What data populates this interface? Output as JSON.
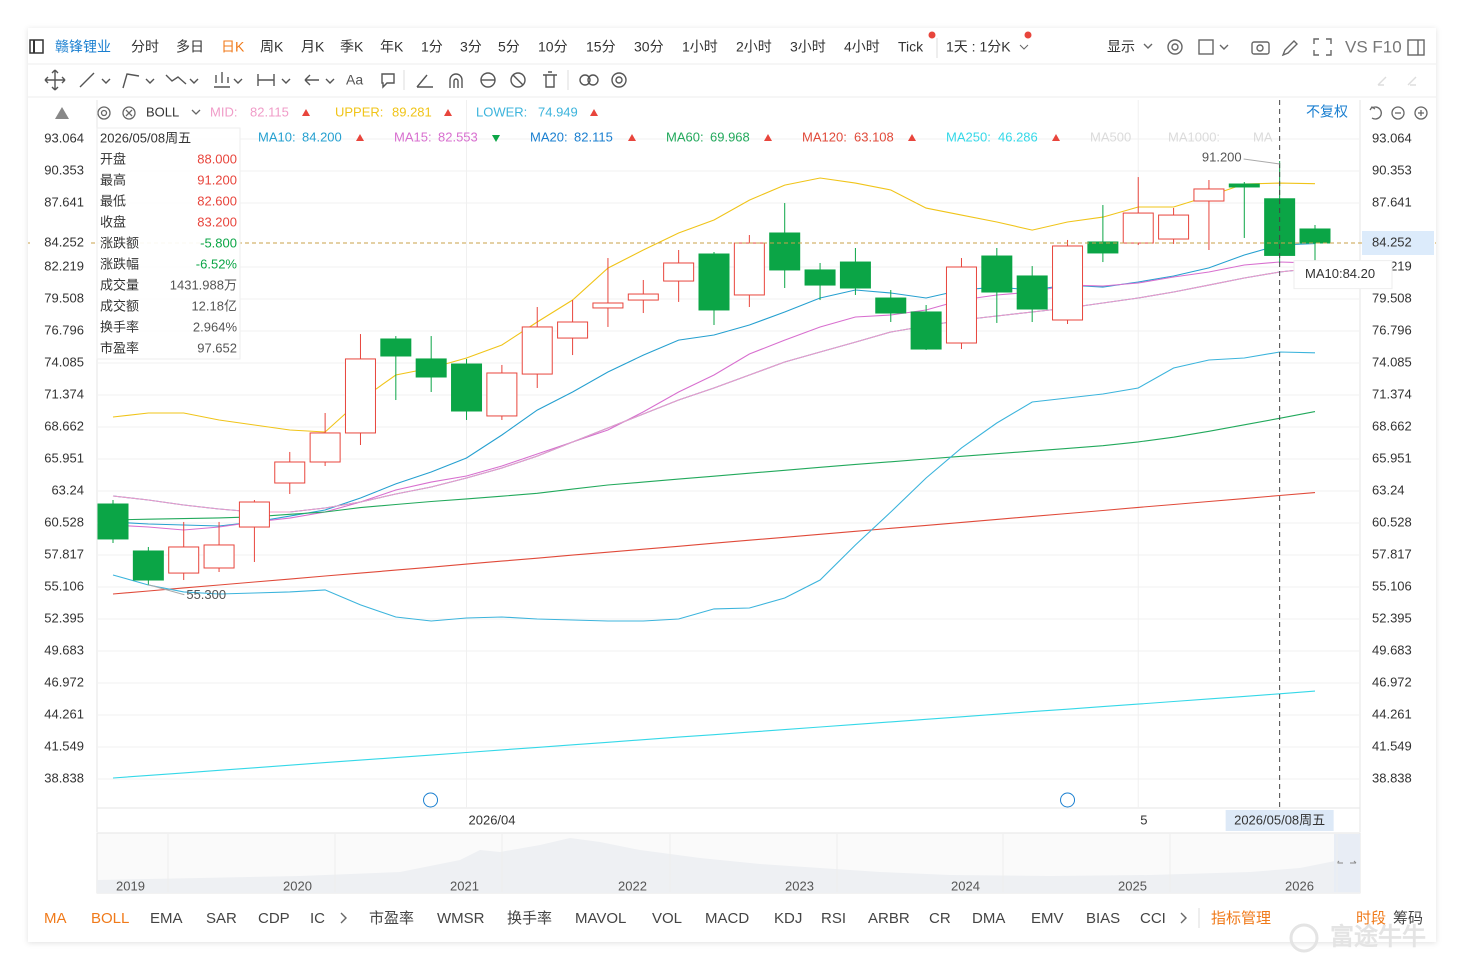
{
  "toolbar": {
    "stock": "赣锋锂业",
    "periods": [
      "分时",
      "多日",
      "日K",
      "周K",
      "月K",
      "季K",
      "年K",
      "1分",
      "3分",
      "5分",
      "10分",
      "15分",
      "30分",
      "1小时",
      "2小时",
      "3小时",
      "4小时",
      "Tick"
    ],
    "active_period": "日K",
    "period_setting": "1天 : 1分K",
    "display": "显示",
    "compare": "VS F10",
    "font_tool": "Aa"
  },
  "indicator_bar": {
    "indicator": "BOLL",
    "adjust": "不复权"
  },
  "info_panel": {
    "date": "2026/05/08周五",
    "rows": [
      {
        "label": "开盘",
        "value": "88.000",
        "tone": "up"
      },
      {
        "label": "最高",
        "value": "91.200",
        "tone": "up"
      },
      {
        "label": "最低",
        "value": "82.600",
        "tone": "up"
      },
      {
        "label": "收盘",
        "value": "83.200",
        "tone": "up"
      },
      {
        "label": "涨跌额",
        "value": "-5.800",
        "tone": "down"
      },
      {
        "label": "涨跌幅",
        "value": "-6.52%",
        "tone": "down"
      },
      {
        "label": "成交量",
        "value": "1431.988万"
      },
      {
        "label": "成交额",
        "value": "12.18亿"
      },
      {
        "label": "换手率",
        "value": "2.964%"
      },
      {
        "label": "市盈率",
        "value": "97.652"
      }
    ]
  },
  "chart_data": {
    "type": "candlestick",
    "categories": [
      null,
      null,
      null,
      null,
      null,
      null,
      null,
      null,
      null,
      null,
      "2026/04",
      null,
      null,
      null,
      null,
      null,
      null,
      null,
      null,
      null,
      null,
      null,
      null,
      null,
      null,
      null,
      null,
      null,
      null,
      "5",
      null,
      null,
      null,
      null,
      null
    ],
    "open": [
      62.14,
      58.16,
      56.29,
      56.72,
      60.19,
      63.92,
      65.7,
      68.16,
      76.12,
      74.43,
      74.0,
      69.6,
      73.15,
      76.2,
      78.75,
      79.42,
      81.03,
      83.32,
      79.85,
      85.1,
      81.97,
      82.64,
      79.59,
      78.41,
      75.78,
      83.15,
      81.46,
      77.73,
      84.34,
      84.25,
      84.59,
      87.81,
      89.25,
      88.0,
      85.44
    ],
    "high": [
      62.48,
      58.5,
      60.62,
      60.62,
      62.48,
      66.55,
      69.85,
      76.54,
      76.37,
      76.37,
      74.43,
      73.92,
      78.83,
      79.42,
      82.98,
      81.12,
      83.66,
      83.49,
      84.93,
      87.64,
      82.56,
      83.83,
      80.27,
      79.0,
      82.98,
      83.83,
      82.3,
      84.51,
      87.47,
      89.84,
      87.22,
      89.59,
      89.42,
      91.2,
      85.78
    ],
    "low": [
      58.84,
      55.3,
      55.7,
      56.38,
      57.23,
      62.99,
      65.36,
      67.14,
      70.95,
      71.63,
      69.26,
      69.26,
      71.97,
      74.76,
      77.14,
      78.32,
      79.26,
      77.31,
      78.83,
      80.44,
      79.42,
      79.85,
      77.56,
      75.19,
      75.27,
      77.48,
      77.56,
      77.39,
      82.64,
      84.08,
      84.17,
      83.66,
      84.68,
      82.6,
      82.64
    ],
    "close": [
      59.18,
      55.7,
      58.5,
      58.67,
      62.31,
      65.7,
      68.16,
      74.43,
      74.68,
      72.9,
      70.02,
      73.24,
      77.14,
      77.56,
      79.17,
      79.93,
      82.56,
      78.58,
      84.25,
      81.97,
      80.69,
      80.44,
      78.32,
      75.27,
      82.22,
      80.1,
      78.66,
      84.0,
      83.41,
      86.79,
      86.62,
      88.83,
      89.0,
      83.2,
      84.252
    ],
    "up_color": "#e8453c",
    "down_color": "#0ba546",
    "boll": [
      {
        "name": "MID:",
        "color": "#f09cc8",
        "legend_value": "82.115",
        "trend": "up",
        "values": [
          62.82,
          62.48,
          62.06,
          61.72,
          61.46,
          61.46,
          61.8,
          62.31,
          62.99,
          63.58,
          64.34,
          65.19,
          66.2,
          67.39,
          68.58,
          69.77,
          70.95,
          71.97,
          73.07,
          74.17,
          75.02,
          75.86,
          76.71,
          77.22,
          77.73,
          78.07,
          78.41,
          78.75,
          79.17,
          79.59,
          80.1,
          80.69,
          81.29,
          81.8,
          82.115
        ]
      },
      {
        "name": "UPPER:",
        "color": "#f0c419",
        "legend_value": "89.281",
        "trend": "up",
        "values": [
          69.51,
          69.85,
          69.85,
          69.26,
          68.83,
          68.41,
          68.24,
          70.95,
          73.07,
          73.66,
          74.51,
          75.61,
          77.56,
          79.42,
          82.13,
          83.66,
          85.1,
          86.2,
          87.89,
          89.16,
          89.76,
          89.33,
          88.74,
          87.21,
          86.62,
          86.03,
          85.35,
          86.03,
          86.45,
          87.3,
          87.3,
          88.23,
          89.25,
          89.33,
          89.281
        ]
      },
      {
        "name": "LOWER:",
        "color": "#3cb4dc",
        "legend_value": "74.949",
        "trend": "up",
        "values": [
          56.13,
          55.28,
          54.69,
          54.52,
          54.6,
          54.69,
          54.86,
          53.59,
          52.57,
          52.23,
          52.48,
          52.57,
          52.4,
          52.31,
          52.23,
          52.23,
          52.4,
          53.25,
          53.33,
          54.18,
          55.7,
          58.67,
          61.46,
          64.34,
          66.89,
          69.0,
          70.78,
          71.12,
          71.46,
          71.97,
          73.66,
          74.34,
          74.51,
          75.02,
          74.949
        ]
      }
    ],
    "series": [
      {
        "name": "MA10:",
        "color": "#26a0d0",
        "legend_value": "84.200",
        "trend": "up",
        "values": [
          60.62,
          60.45,
          60.36,
          60.28,
          60.62,
          61.12,
          61.63,
          62.65,
          63.84,
          64.85,
          66.04,
          67.99,
          70.1,
          71.63,
          73.32,
          74.76,
          76.03,
          76.46,
          77.31,
          78.41,
          79.59,
          80.27,
          80.02,
          79.59,
          80.27,
          80.52,
          80.27,
          80.69,
          80.52,
          80.95,
          81.46,
          82.14,
          83.24,
          84.08,
          84.2
        ]
      },
      {
        "name": "MA15:",
        "color": "#d86fcf",
        "legend_value": "82.553",
        "trend": "down",
        "values": [
          60.36,
          60.19,
          59.94,
          60.19,
          60.62,
          60.95,
          61.46,
          62.31,
          63.33,
          64.0,
          64.51,
          65.36,
          66.38,
          67.39,
          68.41,
          69.94,
          71.63,
          73.07,
          74.85,
          76.03,
          77.14,
          77.98,
          78.15,
          78.58,
          79.42,
          79.85,
          80.1,
          80.69,
          80.61,
          80.86,
          81.37,
          81.8,
          82.39,
          82.64,
          82.553
        ]
      },
      {
        "name": "MA20:",
        "color": "#1a7fd0",
        "legend_value": "82.115",
        "trend": "up",
        "values": [
          62.82,
          62.48,
          62.06,
          61.72,
          61.46,
          61.46,
          61.8,
          62.31,
          62.99,
          63.58,
          64.34,
          65.19,
          66.2,
          67.39,
          68.58,
          69.77,
          70.95,
          71.97,
          73.07,
          74.17,
          75.02,
          75.86,
          76.71,
          77.22,
          77.73,
          78.07,
          78.41,
          78.75,
          79.17,
          79.59,
          80.1,
          80.69,
          81.29,
          81.8,
          82.115
        ]
      },
      {
        "name": "MA60:",
        "color": "#22a95c",
        "legend_value": "69.968",
        "trend": "up",
        "values": [
          60.79,
          60.85,
          60.9,
          60.96,
          61.06,
          61.27,
          61.46,
          61.84,
          62.1,
          62.35,
          62.57,
          62.8,
          63.05,
          63.4,
          63.75,
          64.0,
          64.25,
          64.5,
          64.75,
          65.0,
          65.25,
          65.5,
          65.72,
          65.95,
          66.18,
          66.4,
          66.62,
          66.85,
          67.08,
          67.4,
          67.8,
          68.3,
          68.85,
          69.4,
          69.968
        ]
      },
      {
        "name": "MA120:",
        "color": "#e04a3a",
        "legend_value": "63.108",
        "trend": "up",
        "values": [
          54.52,
          54.77,
          55.03,
          55.28,
          55.53,
          55.78,
          56.04,
          56.29,
          56.54,
          56.79,
          57.05,
          57.3,
          57.55,
          57.81,
          58.06,
          58.31,
          58.56,
          58.82,
          59.07,
          59.32,
          59.57,
          59.83,
          60.08,
          60.33,
          60.58,
          60.84,
          61.09,
          61.34,
          61.59,
          61.85,
          62.1,
          62.35,
          62.6,
          62.86,
          63.108
        ]
      },
      {
        "name": "MA250:",
        "color": "#35d8e8",
        "legend_value": "46.286",
        "trend": "up",
        "values": [
          38.93,
          39.15,
          39.36,
          39.58,
          39.79,
          40.01,
          40.23,
          40.44,
          40.66,
          40.87,
          41.09,
          41.31,
          41.52,
          41.74,
          41.95,
          42.17,
          42.39,
          42.6,
          42.82,
          43.03,
          43.25,
          43.47,
          43.68,
          43.9,
          44.11,
          44.33,
          44.55,
          44.76,
          44.98,
          45.19,
          45.41,
          45.63,
          45.84,
          46.06,
          46.286
        ]
      }
    ],
    "legend_extra": [
      "MA500",
      "MA1000:",
      "MA"
    ],
    "ylim": [
      36.386,
      96.368
    ],
    "yticks": [
      93.064,
      90.353,
      87.641,
      82.219,
      79.508,
      76.796,
      74.085,
      71.374,
      68.662,
      65.951,
      63.24,
      60.528,
      57.817,
      55.106,
      52.395,
      49.683,
      46.972,
      44.261,
      41.549,
      38.838
    ],
    "last_price": 84.252,
    "high_label": "91.200",
    "low_label": "55.300",
    "tooltip": "MA10:84.20",
    "crosshair_label": "2026/05/08周五",
    "navigator_years": [
      "2019",
      "2020",
      "2021",
      "2022",
      "2023",
      "2024",
      "2025",
      "2026"
    ]
  },
  "bottom_bar": {
    "indicators": [
      "MA",
      "BOLL",
      "EMA",
      "SAR",
      "CDP",
      "IC",
      "市盈率",
      "WMSR",
      "换手率",
      "MAVOL",
      "VOL",
      "MACD",
      "KDJ",
      "RSI",
      "ARBR",
      "CR",
      "DMA",
      "EMV",
      "BIAS",
      "CCI"
    ],
    "active": [
      "MA",
      "BOLL"
    ],
    "manage": "指标管理",
    "period_tab": "时段",
    "chips": "筹码"
  },
  "watermark": "富途牛牛"
}
